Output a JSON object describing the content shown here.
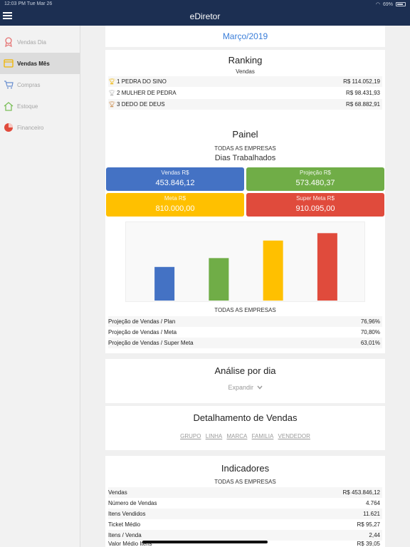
{
  "status": {
    "time": "12:03 PM",
    "date": "Tue Mar 26",
    "battery": "69%"
  },
  "app": {
    "title": "eDiretor"
  },
  "sidebar": {
    "items": [
      {
        "label": "Vendas Dia",
        "icon": "ribbon-icon",
        "active": false
      },
      {
        "label": "Vendas Mês",
        "icon": "calendar-icon",
        "active": true
      },
      {
        "label": "Compras",
        "icon": "cart-icon",
        "active": false
      },
      {
        "label": "Estoque",
        "icon": "home-icon",
        "active": false
      },
      {
        "label": "Financeiro",
        "icon": "pie-icon",
        "active": false
      }
    ]
  },
  "month": {
    "label": "Março/2019"
  },
  "ranking": {
    "title": "Ranking",
    "subtitle": "Vendas",
    "rows": [
      {
        "pos": "1",
        "name": "PEDRA DO SINO",
        "value": "R$ 114.052,19"
      },
      {
        "pos": "2",
        "name": "MULHER DE PEDRA",
        "value": "R$ 98.431,93"
      },
      {
        "pos": "3",
        "name": "DEDO DE DEUS",
        "value": "R$ 68.882,91"
      }
    ]
  },
  "painel": {
    "title": "Painel",
    "company": "TODAS AS EMPRESAS",
    "days": "Dias Trabalhados",
    "tiles": [
      {
        "label": "Vendas R$",
        "value": "453.846,12",
        "color": "#4472c4"
      },
      {
        "label": "Projeção R$",
        "value": "573.480,37",
        "color": "#70ad47"
      },
      {
        "label": "Meta R$",
        "value": "810.000,00",
        "color": "#ffc000"
      },
      {
        "label": "Super Meta R$",
        "value": "910.095,00",
        "color": "#e04b3c"
      }
    ],
    "chart_company": "TODAS AS EMPRESAS",
    "metrics": [
      {
        "label": "Projeção de Vendas / Plan",
        "value": "76,96%"
      },
      {
        "label": "Projeção de Vendas / Meta",
        "value": "70,80%"
      },
      {
        "label": "Projeção de Vendas / Super Meta",
        "value": "63,01%"
      }
    ]
  },
  "chart_data": {
    "type": "bar",
    "categories": [
      "Vendas R$",
      "Projeção R$",
      "Meta R$",
      "Super Meta R$"
    ],
    "values": [
      453846.12,
      573480.37,
      810000.0,
      910095.0
    ],
    "colors": [
      "#4472c4",
      "#70ad47",
      "#ffc000",
      "#e04b3c"
    ],
    "ylim": [
      0,
      1000000
    ],
    "grid": false
  },
  "analise": {
    "title": "Análise por dia",
    "expand_label": "Expandir"
  },
  "detalhamento": {
    "title": "Detalhamento de Vendas",
    "links": [
      "GRUPO",
      "LINHA",
      "MARCA",
      "FAMILIA",
      "VENDEDOR"
    ]
  },
  "indicadores": {
    "title": "Indicadores",
    "company": "TODAS AS EMPRESAS",
    "rows": [
      {
        "label": "Vendas",
        "value": "R$ 453.846,12"
      },
      {
        "label": "Número de Vendas",
        "value": "4.764"
      },
      {
        "label": "Itens Vendidos",
        "value": "11.621"
      },
      {
        "label": "Ticket Médio",
        "value": "R$ 95,27"
      },
      {
        "label": "Itens / Venda",
        "value": "2,44"
      },
      {
        "label": "Valor Médio Itens",
        "value": "R$ 39,05"
      }
    ]
  }
}
